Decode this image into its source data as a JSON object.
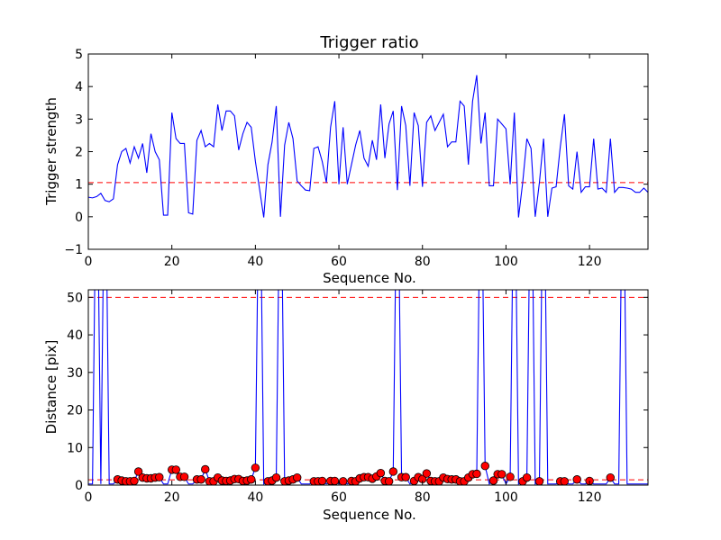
{
  "chart_data": [
    {
      "type": "line",
      "title": "Trigger ratio",
      "xlabel": "Sequence No.",
      "ylabel": "Trigger strength",
      "xlim": [
        0,
        134
      ],
      "ylim": [
        -1,
        5
      ],
      "xticks": [
        0,
        20,
        40,
        60,
        80,
        100,
        120
      ],
      "yticks": [
        -1,
        0,
        1,
        2,
        3,
        4,
        5
      ],
      "xtick_labels": [
        "0",
        "20",
        "40",
        "60",
        "80",
        "100",
        "120"
      ],
      "ytick_labels": [
        "−1",
        "0",
        "1",
        "2",
        "3",
        "4",
        "5"
      ],
      "threshold": 1.05,
      "line_color": "#0000ff",
      "threshold_color": "#ff0000",
      "series": [
        {
          "x": [
            0,
            1,
            2,
            3,
            4,
            5,
            6,
            7,
            8,
            9,
            10,
            11,
            12,
            13,
            14,
            15,
            16,
            17,
            18,
            19,
            20,
            21,
            22,
            23,
            24,
            25,
            26,
            27,
            28,
            29,
            30,
            31,
            32,
            33,
            34,
            35,
            36,
            37,
            38,
            39,
            40,
            41,
            42,
            43,
            44,
            45,
            46,
            47,
            48,
            49,
            50,
            51,
            52,
            53,
            54,
            55,
            56,
            57,
            58,
            59,
            60,
            61,
            62,
            63,
            64,
            65,
            66,
            67,
            68,
            69,
            70,
            71,
            72,
            73,
            74,
            75,
            76,
            77,
            78,
            79,
            80,
            81,
            82,
            83,
            84,
            85,
            86,
            87,
            88,
            89,
            90,
            91,
            92,
            93,
            94,
            95,
            96,
            97,
            98,
            99,
            100,
            101,
            102,
            103,
            104,
            105,
            106,
            107,
            108,
            109,
            110,
            111,
            112,
            113,
            114,
            115,
            116,
            117,
            118,
            119,
            120,
            121,
            122,
            123,
            124,
            125,
            126,
            127,
            128,
            129,
            130,
            131,
            132,
            133,
            134
          ],
          "y": [
            0.6,
            0.58,
            0.62,
            0.72,
            0.5,
            0.46,
            0.55,
            1.6,
            2.0,
            2.1,
            1.65,
            2.15,
            1.8,
            2.25,
            1.35,
            2.55,
            2.0,
            1.75,
            0.05,
            0.05,
            3.2,
            2.4,
            2.25,
            2.25,
            0.12,
            0.08,
            2.35,
            2.65,
            2.15,
            2.25,
            2.15,
            3.45,
            2.65,
            3.25,
            3.25,
            3.1,
            2.05,
            2.55,
            2.9,
            2.75,
            1.7,
            0.85,
            -0.02,
            1.6,
            2.3,
            3.4,
            0.0,
            2.2,
            2.9,
            2.4,
            1.1,
            0.95,
            0.82,
            0.8,
            2.1,
            2.15,
            1.7,
            1.05,
            2.75,
            3.55,
            1.0,
            2.75,
            1.0,
            1.6,
            2.2,
            2.65,
            1.8,
            1.55,
            2.35,
            1.75,
            3.45,
            1.8,
            2.85,
            3.25,
            0.82,
            3.4,
            2.8,
            0.95,
            3.2,
            2.8,
            0.92,
            2.9,
            3.1,
            2.65,
            2.9,
            3.15,
            2.15,
            2.3,
            2.3,
            3.55,
            3.4,
            1.6,
            3.55,
            4.35,
            2.25,
            3.2,
            0.95,
            0.95,
            3.0,
            2.85,
            2.7,
            1.0,
            3.2,
            -0.02,
            1.05,
            2.4,
            2.1,
            0.0,
            1.05,
            2.4,
            0.0,
            0.88,
            0.92,
            2.15,
            3.15,
            0.95,
            0.85,
            2.0,
            0.75,
            0.92,
            0.92,
            2.4,
            0.85,
            0.88,
            0.75,
            2.4,
            0.75,
            0.9,
            0.9,
            0.88,
            0.85,
            0.75,
            0.75,
            0.88,
            0.75
          ]
        }
      ]
    },
    {
      "type": "line",
      "title": "",
      "xlabel": "Sequence No.",
      "ylabel": "Distance [pix]",
      "xlim": [
        0,
        134
      ],
      "ylim": [
        0,
        52
      ],
      "xticks": [
        0,
        20,
        40,
        60,
        80,
        100,
        120
      ],
      "yticks": [
        0,
        10,
        20,
        30,
        40,
        50
      ],
      "xtick_labels": [
        "0",
        "20",
        "40",
        "60",
        "80",
        "100",
        "120"
      ],
      "ytick_labels": [
        "0",
        "10",
        "20",
        "30",
        "40",
        "50"
      ],
      "threshold_high": 50,
      "threshold_low": 1.4,
      "line_color": "#0000ff",
      "marker_color": "#ff0000",
      "threshold_color": "#ff0000",
      "series": [
        {
          "x": [
            0,
            1,
            2,
            3,
            4,
            5,
            6,
            7,
            8,
            9,
            10,
            11,
            12,
            13,
            14,
            15,
            16,
            17,
            18,
            19,
            20,
            21,
            22,
            23,
            24,
            25,
            26,
            27,
            28,
            29,
            30,
            31,
            32,
            33,
            34,
            35,
            36,
            37,
            38,
            39,
            40,
            41,
            42,
            43,
            44,
            45,
            46,
            47,
            48,
            49,
            50,
            51,
            52,
            53,
            54,
            55,
            56,
            57,
            58,
            59,
            60,
            61,
            62,
            63,
            64,
            65,
            66,
            67,
            68,
            69,
            70,
            71,
            72,
            73,
            74,
            75,
            76,
            77,
            78,
            79,
            80,
            81,
            82,
            83,
            84,
            85,
            86,
            87,
            88,
            89,
            90,
            91,
            92,
            93,
            94,
            95,
            96,
            97,
            98,
            99,
            100,
            101,
            102,
            103,
            104,
            105,
            106,
            107,
            108,
            109,
            110,
            111,
            112,
            113,
            114,
            115,
            116,
            117,
            118,
            119,
            120,
            121,
            122,
            123,
            124,
            125,
            126,
            127,
            128,
            129,
            130,
            131,
            132,
            133,
            134
          ],
          "y": [
            0.3,
            0.3,
            99,
            0.3,
            99,
            0.3,
            0.3,
            1.5,
            1.2,
            1.0,
            1.0,
            1.1,
            3.6,
            2.0,
            1.8,
            1.8,
            2.0,
            2.1,
            0.3,
            0.3,
            4.1,
            4.1,
            2.2,
            2.2,
            0.3,
            0.3,
            1.5,
            1.5,
            4.2,
            1.0,
            1.0,
            2.0,
            1.2,
            1.1,
            1.2,
            1.6,
            1.6,
            1.1,
            1.2,
            1.5,
            4.6,
            99,
            0.3,
            1.0,
            1.2,
            2.0,
            99,
            1.0,
            1.2,
            1.5,
            2.0,
            0.3,
            0.3,
            0.3,
            1.0,
            1.0,
            1.1,
            0.3,
            1.1,
            1.1,
            0.3,
            1.0,
            0.3,
            1.1,
            1.0,
            1.8,
            2.1,
            2.1,
            1.7,
            2.3,
            3.2,
            1.1,
            1.0,
            3.6,
            99,
            2.1,
            2.1,
            0.3,
            1.1,
            2.1,
            1.6,
            3.1,
            1.1,
            1.0,
            1.0,
            2.0,
            1.6,
            1.5,
            1.5,
            1.0,
            1.0,
            2.0,
            2.9,
            3.0,
            99,
            5.1,
            0.3,
            1.2,
            2.9,
            2.9,
            0.3,
            2.2,
            99,
            0.3,
            1.0,
            2.0,
            99,
            0.3,
            1.0,
            99,
            0.3,
            0.3,
            0.3,
            1.0,
            1.0,
            0.3,
            0.3,
            1.5,
            0.3,
            0.3,
            1.1,
            0.3,
            0.3,
            0.3,
            0.3,
            2.0,
            0.3,
            0.3,
            99,
            0.3,
            0.3,
            0.3,
            0.3,
            0.3,
            0.3
          ],
          "markers": [
            [
              7,
              1.5
            ],
            [
              8,
              1.2
            ],
            [
              9,
              1.0
            ],
            [
              10,
              1.0
            ],
            [
              11,
              1.1
            ],
            [
              12,
              3.6
            ],
            [
              13,
              2.0
            ],
            [
              14,
              1.8
            ],
            [
              15,
              1.8
            ],
            [
              16,
              2.0
            ],
            [
              17,
              2.1
            ],
            [
              20,
              4.1
            ],
            [
              21,
              4.1
            ],
            [
              22,
              2.2
            ],
            [
              23,
              2.2
            ],
            [
              26,
              1.5
            ],
            [
              27,
              1.5
            ],
            [
              28,
              4.2
            ],
            [
              29,
              1.0
            ],
            [
              30,
              1.0
            ],
            [
              31,
              2.0
            ],
            [
              32,
              1.2
            ],
            [
              33,
              1.1
            ],
            [
              34,
              1.2
            ],
            [
              35,
              1.6
            ],
            [
              36,
              1.6
            ],
            [
              37,
              1.1
            ],
            [
              38,
              1.2
            ],
            [
              39,
              1.5
            ],
            [
              40,
              4.6
            ],
            [
              43,
              1.0
            ],
            [
              44,
              1.2
            ],
            [
              45,
              2.0
            ],
            [
              47,
              1.0
            ],
            [
              48,
              1.2
            ],
            [
              49,
              1.5
            ],
            [
              50,
              2.0
            ],
            [
              54,
              1.0
            ],
            [
              55,
              1.0
            ],
            [
              56,
              1.1
            ],
            [
              58,
              1.1
            ],
            [
              59,
              1.1
            ],
            [
              61,
              1.0
            ],
            [
              63,
              1.1
            ],
            [
              64,
              1.0
            ],
            [
              65,
              1.8
            ],
            [
              66,
              2.1
            ],
            [
              67,
              2.1
            ],
            [
              68,
              1.7
            ],
            [
              69,
              2.3
            ],
            [
              70,
              3.2
            ],
            [
              71,
              1.1
            ],
            [
              72,
              1.0
            ],
            [
              73,
              3.6
            ],
            [
              75,
              2.1
            ],
            [
              76,
              2.1
            ],
            [
              78,
              1.1
            ],
            [
              79,
              2.1
            ],
            [
              80,
              1.6
            ],
            [
              81,
              3.1
            ],
            [
              82,
              1.1
            ],
            [
              83,
              1.0
            ],
            [
              84,
              1.0
            ],
            [
              85,
              2.0
            ],
            [
              86,
              1.6
            ],
            [
              87,
              1.5
            ],
            [
              88,
              1.5
            ],
            [
              89,
              1.0
            ],
            [
              90,
              1.0
            ],
            [
              91,
              2.0
            ],
            [
              92,
              2.9
            ],
            [
              93,
              3.0
            ],
            [
              95,
              5.1
            ],
            [
              97,
              1.2
            ],
            [
              98,
              2.9
            ],
            [
              99,
              2.9
            ],
            [
              101,
              2.2
            ],
            [
              104,
              1.0
            ],
            [
              105,
              2.0
            ],
            [
              108,
              1.0
            ],
            [
              113,
              1.0
            ],
            [
              114,
              1.0
            ],
            [
              117,
              1.5
            ],
            [
              120,
              1.1
            ],
            [
              125,
              2.0
            ]
          ]
        }
      ]
    }
  ]
}
